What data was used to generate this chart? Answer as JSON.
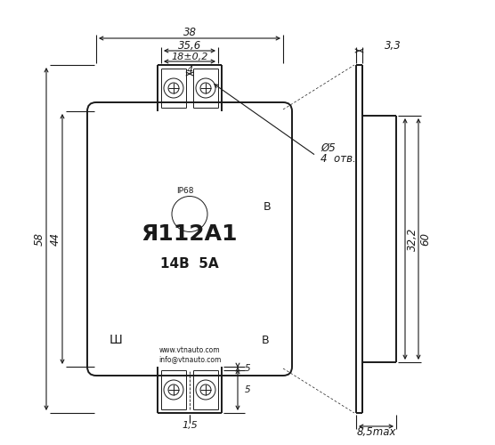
{
  "bg_color": "#ffffff",
  "line_color": "#1a1a1a",
  "dim_38": "38",
  "dim_35_6": "35,6",
  "dim_18_02": "18±0,2",
  "dim_4": "4",
  "dim_d5": "Ø5",
  "dim_4otv": "4  отв.",
  "dim_58": "58",
  "dim_44": "44",
  "dim_60": "60",
  "dim_3_3": "3,3",
  "dim_32_2": "32,2",
  "dim_8_5max": "8,5max",
  "dim_5a": "5",
  "dim_5b": "5",
  "dim_1_5": "1,5",
  "label_IP68": "IP68",
  "label_B1": "B",
  "label_title": "Я112А1",
  "label_voltage": "14В  5А",
  "label_Sh": "Ш",
  "label_B2": "В",
  "label_web1": "www.vtnauto.com",
  "label_web2": "info@vtnauto.com"
}
